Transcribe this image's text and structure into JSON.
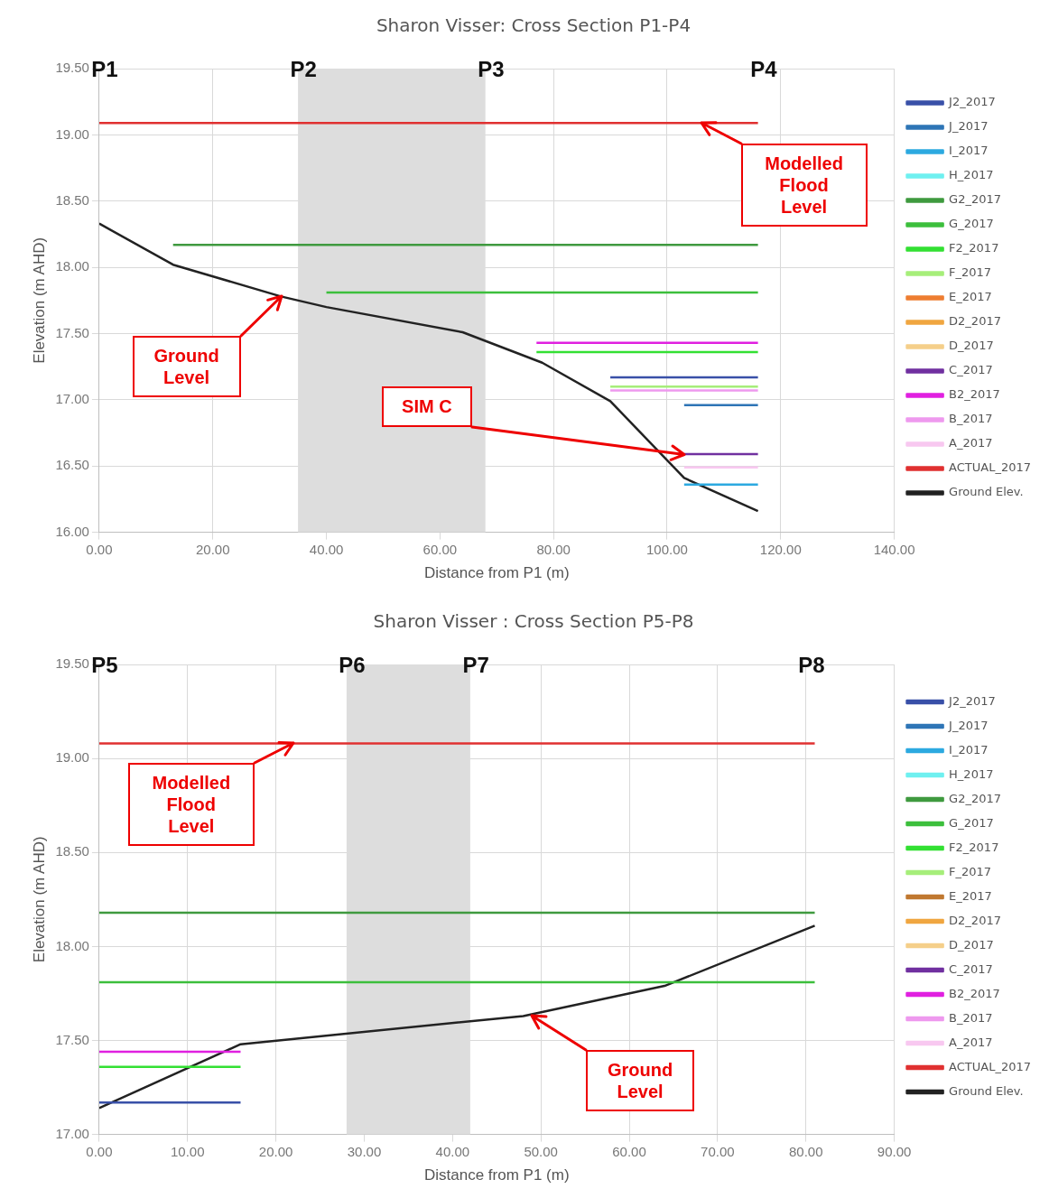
{
  "chart_data": [
    {
      "type": "line",
      "title": "Sharon Visser: Cross Section P1-P4",
      "xlabel": "Distance from P1 (m)",
      "ylabel": "Elevation (m AHD)",
      "grid": true,
      "legend": "right",
      "marker": "none",
      "xlim": [
        0,
        140
      ],
      "xticks": [
        {
          "value": 0,
          "label": "0.00"
        },
        {
          "value": 20,
          "label": "20.00"
        },
        {
          "value": 40,
          "label": "40.00"
        },
        {
          "value": 60,
          "label": "60.00"
        },
        {
          "value": 80,
          "label": "80.00"
        },
        {
          "value": 100,
          "label": "100.00"
        },
        {
          "value": 120,
          "label": "120.00"
        },
        {
          "value": 140,
          "label": "140.00"
        }
      ],
      "ylim": [
        16,
        19.5
      ],
      "yticks": [
        {
          "value": 16,
          "label": "16.00"
        },
        {
          "value": 16.5,
          "label": "16.50"
        },
        {
          "value": 17,
          "label": "17.00"
        },
        {
          "value": 17.5,
          "label": "17.50"
        },
        {
          "value": 18,
          "label": "18.00"
        },
        {
          "value": 18.5,
          "label": "18.50"
        },
        {
          "value": 19,
          "label": "19.00"
        },
        {
          "value": 19.5,
          "label": "19.50"
        }
      ],
      "bands": [
        {
          "axis": "x",
          "from": 35,
          "to": 68,
          "color": "#dddddd"
        }
      ],
      "series": [
        {
          "name": "J2_2017",
          "color": "#3950a8",
          "x": [
            90,
            116
          ],
          "values": [
            17.17,
            17.17
          ]
        },
        {
          "name": "J_2017",
          "color": "#2e75b6",
          "x": [
            103,
            116
          ],
          "values": [
            16.96,
            16.96
          ]
        },
        {
          "name": "I_2017",
          "color": "#2ca9e0",
          "x": [
            103,
            116
          ],
          "values": [
            16.36,
            16.36
          ]
        },
        {
          "name": "H_2017",
          "color": "#6ff0f0"
        },
        {
          "name": "G2_2017",
          "color": "#3f9a3f",
          "x": [
            13,
            116
          ],
          "values": [
            18.17,
            18.17
          ]
        },
        {
          "name": "G_2017",
          "color": "#3cbf3c",
          "x": [
            40,
            116
          ],
          "values": [
            17.81,
            17.81
          ]
        },
        {
          "name": "F2_2017",
          "color": "#33e033",
          "x": [
            77,
            116
          ],
          "values": [
            17.36,
            17.36
          ]
        },
        {
          "name": "F_2017",
          "color": "#a6ee7a",
          "x": [
            90,
            116
          ],
          "values": [
            17.1,
            17.1
          ]
        },
        {
          "name": "E_2017",
          "color": "#ee7d31"
        },
        {
          "name": "D2_2017",
          "color": "#f0a640"
        },
        {
          "name": "D_2017",
          "color": "#f5cf8a"
        },
        {
          "name": "C_2017",
          "color": "#7030a0",
          "x": [
            103,
            116
          ],
          "values": [
            16.59,
            16.59
          ]
        },
        {
          "name": "B2_2017",
          "color": "#e020e0",
          "x": [
            77,
            116
          ],
          "values": [
            17.43,
            17.43
          ]
        },
        {
          "name": "B_2017",
          "color": "#ee99ee",
          "x": [
            90,
            116
          ],
          "values": [
            17.07,
            17.07
          ]
        },
        {
          "name": "A_2017",
          "color": "#f8c8f0",
          "x": [
            103,
            116
          ],
          "values": [
            16.49,
            16.49
          ]
        },
        {
          "name": "ACTUAL_2017",
          "color": "#e03030",
          "x": [
            0,
            116
          ],
          "values": [
            19.09,
            19.09
          ]
        },
        {
          "name": "Ground Elev.",
          "color": "#222222",
          "x": [
            0,
            13,
            32,
            40,
            64,
            78,
            90,
            103,
            116
          ],
          "values": [
            18.33,
            18.02,
            17.78,
            17.7,
            17.51,
            17.28,
            16.99,
            16.41,
            16.16
          ]
        }
      ],
      "annotations": [
        "P1",
        "P2",
        "P3",
        "P4",
        "Modelled Flood Level",
        "Ground Level",
        {
          "text": "SIM C",
          "x": 103,
          "y": 16.59
        }
      ]
    },
    {
      "type": "line",
      "title": "Sharon Visser : Cross Section P5-P8",
      "xlabel": "Distance from P1 (m)",
      "ylabel": "Elevation (m AHD)",
      "grid": true,
      "legend": "right",
      "marker": "none",
      "xlim": [
        0,
        90
      ],
      "xticks": [
        {
          "value": 0,
          "label": "0.00"
        },
        {
          "value": 10,
          "label": "10.00"
        },
        {
          "value": 20,
          "label": "20.00"
        },
        {
          "value": 30,
          "label": "30.00"
        },
        {
          "value": 40,
          "label": "40.00"
        },
        {
          "value": 50,
          "label": "50.00"
        },
        {
          "value": 60,
          "label": "60.00"
        },
        {
          "value": 70,
          "label": "70.00"
        },
        {
          "value": 80,
          "label": "80.00"
        },
        {
          "value": 90,
          "label": "90.00"
        }
      ],
      "ylim": [
        17,
        19.5
      ],
      "yticks": [
        {
          "value": 17,
          "label": "17.00"
        },
        {
          "value": 17.5,
          "label": "17.50"
        },
        {
          "value": 18,
          "label": "18.00"
        },
        {
          "value": 18.5,
          "label": "18.50"
        },
        {
          "value": 19,
          "label": "19.00"
        },
        {
          "value": 19.5,
          "label": "19.50"
        }
      ],
      "bands": [
        {
          "axis": "x",
          "from": 28,
          "to": 42,
          "color": "#dddddd"
        }
      ],
      "series": [
        {
          "name": "J2_2017",
          "color": "#3950a8",
          "x": [
            0,
            16
          ],
          "values": [
            17.17,
            17.17
          ]
        },
        {
          "name": "J_2017",
          "color": "#2e75b6"
        },
        {
          "name": "I_2017",
          "color": "#2ca9e0"
        },
        {
          "name": "H_2017",
          "color": "#6ff0f0"
        },
        {
          "name": "G2_2017",
          "color": "#3f9a3f",
          "x": [
            0,
            81
          ],
          "values": [
            18.18,
            18.18
          ]
        },
        {
          "name": "G_2017",
          "color": "#3cbf3c",
          "x": [
            0,
            81
          ],
          "values": [
            17.81,
            17.81
          ]
        },
        {
          "name": "F2_2017",
          "color": "#33e033",
          "x": [
            0,
            16
          ],
          "values": [
            17.36,
            17.36
          ]
        },
        {
          "name": "F_2017",
          "color": "#a6ee7a"
        },
        {
          "name": "E_2017",
          "color": "#c07830"
        },
        {
          "name": "D2_2017",
          "color": "#f0a640"
        },
        {
          "name": "D_2017",
          "color": "#f5cf8a"
        },
        {
          "name": "C_2017",
          "color": "#7030a0"
        },
        {
          "name": "B2_2017",
          "color": "#e020e0",
          "x": [
            0,
            16
          ],
          "values": [
            17.44,
            17.44
          ]
        },
        {
          "name": "B_2017",
          "color": "#ee99ee"
        },
        {
          "name": "A_2017",
          "color": "#f8c8f0"
        },
        {
          "name": "ACTUAL_2017",
          "color": "#e03030",
          "x": [
            0,
            81
          ],
          "values": [
            19.08,
            19.08
          ]
        },
        {
          "name": "Ground Elev.",
          "color": "#222222",
          "x": [
            0,
            16,
            48,
            64,
            81
          ],
          "values": [
            17.14,
            17.48,
            17.63,
            17.79,
            18.11
          ]
        }
      ],
      "annotations": [
        "P5",
        "P6",
        "P7",
        "P8",
        "Modelled Flood Level",
        "Ground Level"
      ]
    }
  ]
}
